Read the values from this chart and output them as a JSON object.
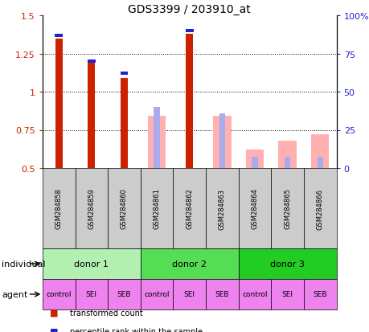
{
  "title": "GDS3399 / 203910_at",
  "samples": [
    "GSM284858",
    "GSM284859",
    "GSM284860",
    "GSM284861",
    "GSM284862",
    "GSM284863",
    "GSM284864",
    "GSM284865",
    "GSM284866"
  ],
  "red_values": [
    1.35,
    1.19,
    1.09,
    null,
    1.38,
    null,
    null,
    null,
    null
  ],
  "blue_values": [
    1.37,
    1.2,
    1.12,
    null,
    1.4,
    null,
    null,
    null,
    null
  ],
  "pink_values": [
    null,
    null,
    null,
    0.84,
    null,
    0.84,
    0.62,
    0.68,
    0.72
  ],
  "lightblue_values": [
    null,
    null,
    null,
    0.9,
    null,
    0.86,
    0.575,
    0.575,
    0.575
  ],
  "ylim": [
    0.5,
    1.5
  ],
  "y_ticks_left": [
    0.5,
    0.75,
    1.0,
    1.25,
    1.5
  ],
  "y_ticks_right": [
    0,
    25,
    50,
    75,
    100
  ],
  "ytick_labels_left": [
    "0.5",
    "0.75",
    "1",
    "1.25",
    "1.5"
  ],
  "ytick_labels_right": [
    "0",
    "25",
    "50",
    "75",
    "100%"
  ],
  "donors": [
    {
      "label": "donor 1",
      "start": 0,
      "end": 3,
      "color": "#b2f0b2"
    },
    {
      "label": "donor 2",
      "start": 3,
      "end": 6,
      "color": "#55dd55"
    },
    {
      "label": "donor 3",
      "start": 6,
      "end": 9,
      "color": "#22cc22"
    }
  ],
  "agents": [
    "control",
    "SEI",
    "SEB",
    "control",
    "SEI",
    "SEB",
    "control",
    "SEI",
    "SEB"
  ],
  "agent_color": "#ee82ee",
  "agent_control_color": "#dd66dd",
  "red_color": "#cc2200",
  "blue_color": "#2222cc",
  "pink_color": "#ffb0b0",
  "lightblue_color": "#aaaaee",
  "sample_row_color": "#cccccc"
}
